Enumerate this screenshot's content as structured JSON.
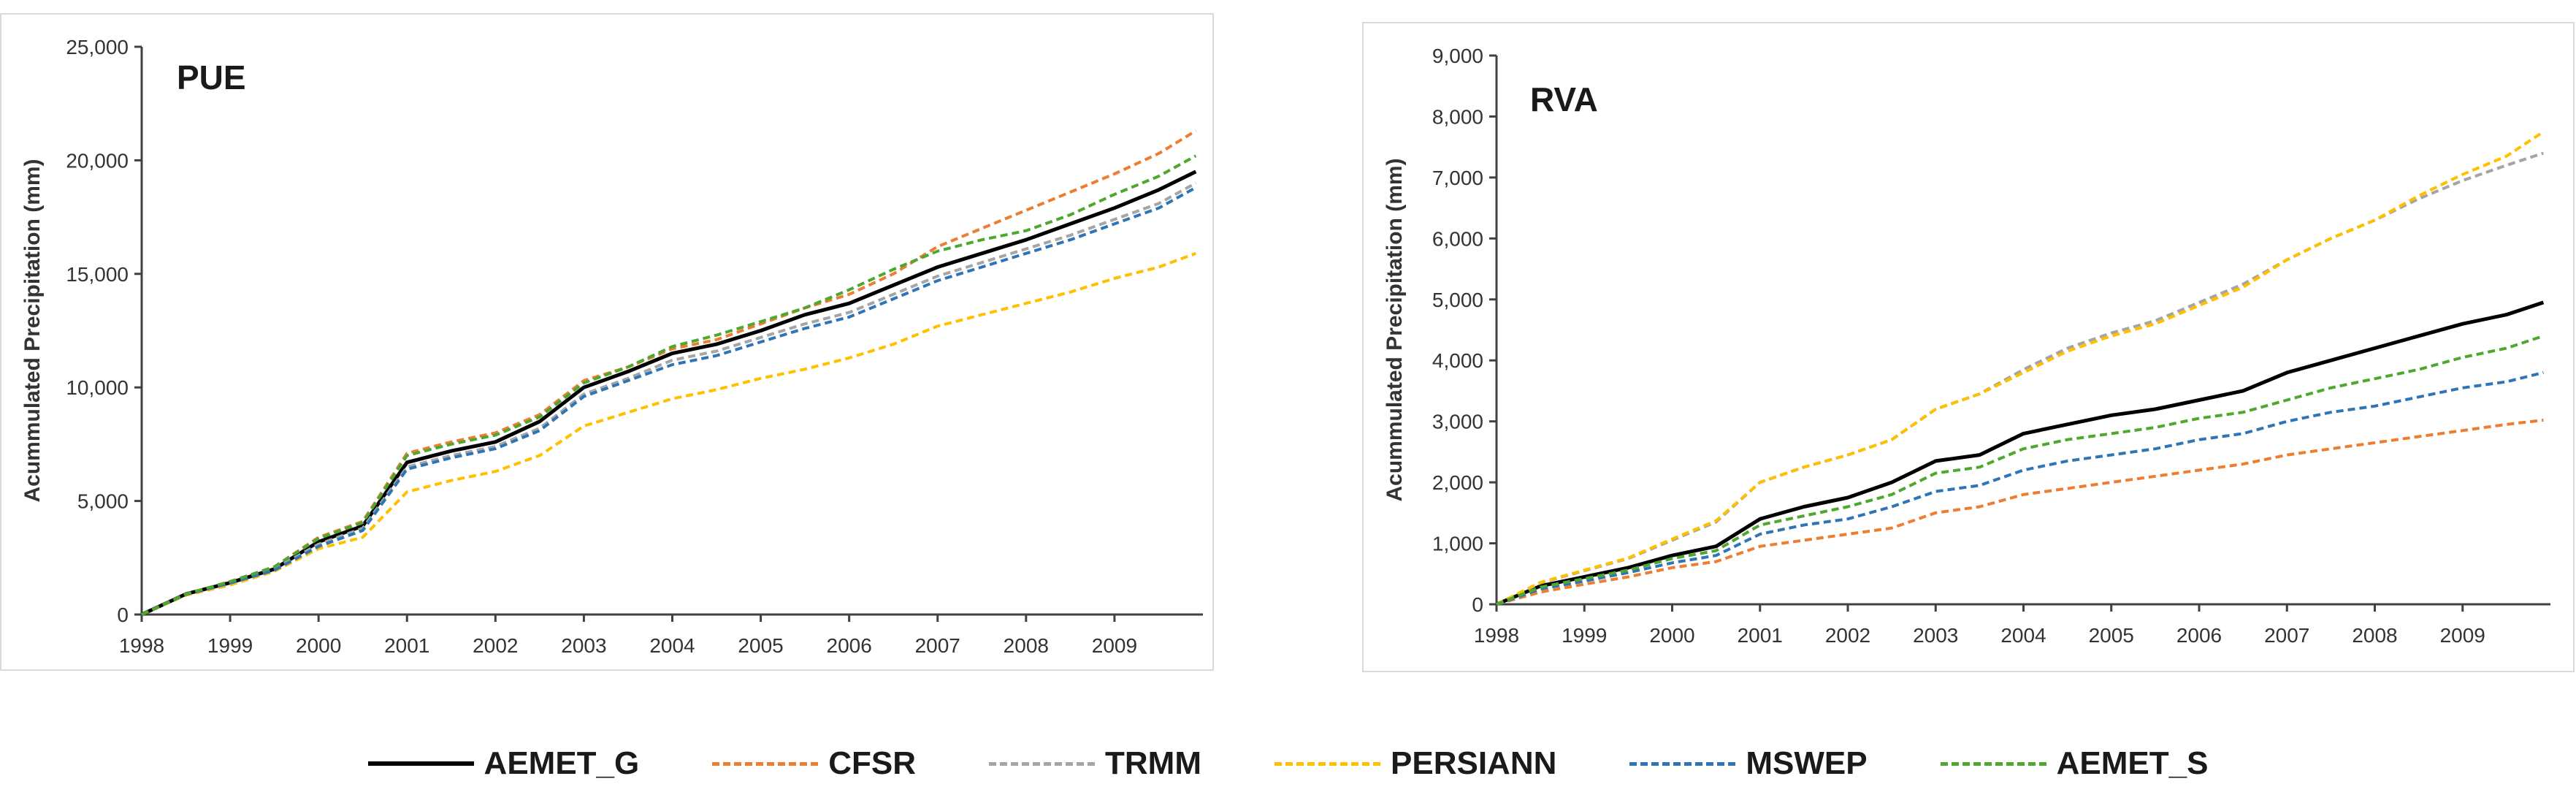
{
  "chart_data": [
    {
      "type": "line",
      "panel_label": "PUE",
      "title": "",
      "xlabel": "",
      "ylabel": "Acummulated Precipitation (mm)",
      "xlim": [
        1998,
        2010
      ],
      "ylim": [
        0,
        25000
      ],
      "x_ticks": [
        1998,
        1999,
        2000,
        2001,
        2002,
        2003,
        2004,
        2005,
        2006,
        2007,
        2008,
        2009
      ],
      "x_tick_labels": [
        "1998",
        "1999",
        "2000",
        "2001",
        "2002",
        "2003",
        "2004",
        "2005",
        "2006",
        "2007",
        "2008",
        "2009"
      ],
      "y_ticks": [
        0,
        5000,
        10000,
        15000,
        20000,
        25000
      ],
      "y_tick_labels": [
        "0",
        "5,000",
        "10,000",
        "15,000",
        "20,000",
        "25,000"
      ],
      "grid": false,
      "x": [
        1998,
        1998.5,
        1999,
        1999.5,
        2000,
        2000.5,
        2001,
        2001.5,
        2002,
        2002.5,
        2003,
        2003.5,
        2004,
        2004.5,
        2005,
        2005.5,
        2006,
        2006.5,
        2007,
        2007.5,
        2008,
        2008.5,
        2009,
        2009.5,
        2009.92
      ],
      "series": [
        {
          "name": "AEMET_G",
          "values": [
            0,
            900,
            1400,
            2000,
            3200,
            3900,
            6700,
            7200,
            7600,
            8500,
            10000,
            10700,
            11500,
            11900,
            12500,
            13200,
            13700,
            14500,
            15300,
            15900,
            16500,
            17200,
            17900,
            18700,
            19500
          ]
        },
        {
          "name": "CFSR",
          "values": [
            0,
            900,
            1450,
            2100,
            3400,
            4100,
            7100,
            7600,
            8000,
            8800,
            10300,
            10900,
            11700,
            12100,
            12800,
            13500,
            14100,
            15000,
            16200,
            17000,
            17800,
            18600,
            19400,
            20300,
            21300
          ]
        },
        {
          "name": "TRMM",
          "values": [
            0,
            900,
            1400,
            2000,
            3100,
            3800,
            6500,
            7000,
            7400,
            8200,
            9700,
            10400,
            11200,
            11600,
            12200,
            12800,
            13300,
            14100,
            14900,
            15500,
            16100,
            16700,
            17400,
            18100,
            19000
          ]
        },
        {
          "name": "PERSIANN",
          "values": [
            0,
            850,
            1300,
            1900,
            2900,
            3400,
            5400,
            5900,
            6300,
            7000,
            8300,
            8900,
            9500,
            9900,
            10400,
            10800,
            11300,
            11900,
            12700,
            13200,
            13700,
            14200,
            14800,
            15300,
            15900
          ]
        },
        {
          "name": "MSWEP",
          "values": [
            0,
            880,
            1380,
            1950,
            3000,
            3700,
            6400,
            6900,
            7300,
            8100,
            9600,
            10300,
            11000,
            11400,
            12000,
            12600,
            13100,
            13900,
            14700,
            15300,
            15900,
            16500,
            17200,
            17900,
            18800
          ]
        },
        {
          "name": "AEMET_S",
          "values": [
            0,
            900,
            1450,
            2100,
            3350,
            4050,
            7000,
            7500,
            7900,
            8700,
            10200,
            10900,
            11800,
            12300,
            12900,
            13500,
            14300,
            15200,
            16000,
            16500,
            16900,
            17600,
            18500,
            19300,
            20200
          ]
        }
      ]
    },
    {
      "type": "line",
      "panel_label": "RVA",
      "title": "",
      "xlabel": "",
      "ylabel": "Acummulated Precipitation (mm)",
      "xlim": [
        1998,
        2010
      ],
      "ylim": [
        0,
        9000
      ],
      "x_ticks": [
        1998,
        1999,
        2000,
        2001,
        2002,
        2003,
        2004,
        2005,
        2006,
        2007,
        2008,
        2009
      ],
      "x_tick_labels": [
        "1998",
        "1999",
        "2000",
        "2001",
        "2002",
        "2003",
        "2004",
        "2005",
        "2006",
        "2007",
        "2008",
        "2009"
      ],
      "y_ticks": [
        0,
        1000,
        2000,
        3000,
        4000,
        5000,
        6000,
        7000,
        8000,
        9000
      ],
      "y_tick_labels": [
        "0",
        "1,000",
        "2,000",
        "3,000",
        "4,000",
        "5,000",
        "6,000",
        "7,000",
        "8,000",
        "9,000"
      ],
      "grid": false,
      "x": [
        1998,
        1998.5,
        1999,
        1999.5,
        2000,
        2000.5,
        2001,
        2001.5,
        2002,
        2002.5,
        2003,
        2003.5,
        2004,
        2004.5,
        2005,
        2005.5,
        2006,
        2006.5,
        2007,
        2007.5,
        2008,
        2008.5,
        2009,
        2009.5,
        2009.92
      ],
      "series": [
        {
          "name": "AEMET_G",
          "values": [
            0,
            300,
            450,
            600,
            800,
            950,
            1400,
            1600,
            1750,
            2000,
            2350,
            2450,
            2800,
            2950,
            3100,
            3200,
            3350,
            3500,
            3800,
            4000,
            4200,
            4400,
            4600,
            4750,
            4950
          ]
        },
        {
          "name": "CFSR",
          "values": [
            0,
            200,
            330,
            450,
            600,
            700,
            950,
            1050,
            1150,
            1250,
            1500,
            1600,
            1800,
            1900,
            2000,
            2100,
            2200,
            2300,
            2450,
            2550,
            2650,
            2750,
            2850,
            2950,
            3020
          ]
        },
        {
          "name": "TRMM",
          "values": [
            0,
            350,
            550,
            750,
            1050,
            1350,
            2000,
            2250,
            2450,
            2700,
            3200,
            3450,
            3850,
            4200,
            4450,
            4650,
            4950,
            5250,
            5650,
            6000,
            6300,
            6650,
            6950,
            7200,
            7400
          ]
        },
        {
          "name": "PERSIANN",
          "values": [
            0,
            360,
            560,
            760,
            1070,
            1370,
            2000,
            2250,
            2450,
            2700,
            3200,
            3450,
            3800,
            4150,
            4400,
            4600,
            4900,
            5200,
            5650,
            6000,
            6300,
            6700,
            7050,
            7350,
            7750
          ]
        },
        {
          "name": "MSWEP",
          "values": [
            0,
            250,
            380,
            520,
            680,
            800,
            1150,
            1300,
            1400,
            1600,
            1850,
            1950,
            2200,
            2350,
            2450,
            2550,
            2700,
            2800,
            3000,
            3150,
            3250,
            3400,
            3550,
            3650,
            3800
          ]
        },
        {
          "name": "AEMET_S",
          "values": [
            0,
            280,
            420,
            560,
            750,
            880,
            1300,
            1450,
            1600,
            1800,
            2150,
            2250,
            2550,
            2700,
            2800,
            2900,
            3050,
            3150,
            3350,
            3550,
            3700,
            3850,
            4050,
            4200,
            4400
          ]
        }
      ]
    }
  ],
  "legend": {
    "items": [
      {
        "name": "AEMET_G",
        "color": "#000000",
        "style": "solid"
      },
      {
        "name": "CFSR",
        "color": "#ed7d31",
        "style": "dashed"
      },
      {
        "name": "TRMM",
        "color": "#a5a5a5",
        "style": "dashed"
      },
      {
        "name": "PERSIANN",
        "color": "#ffc000",
        "style": "dashed"
      },
      {
        "name": "MSWEP",
        "color": "#2e75b6",
        "style": "dashed"
      },
      {
        "name": "AEMET_S",
        "color": "#4ea72e",
        "style": "dashed"
      }
    ]
  }
}
